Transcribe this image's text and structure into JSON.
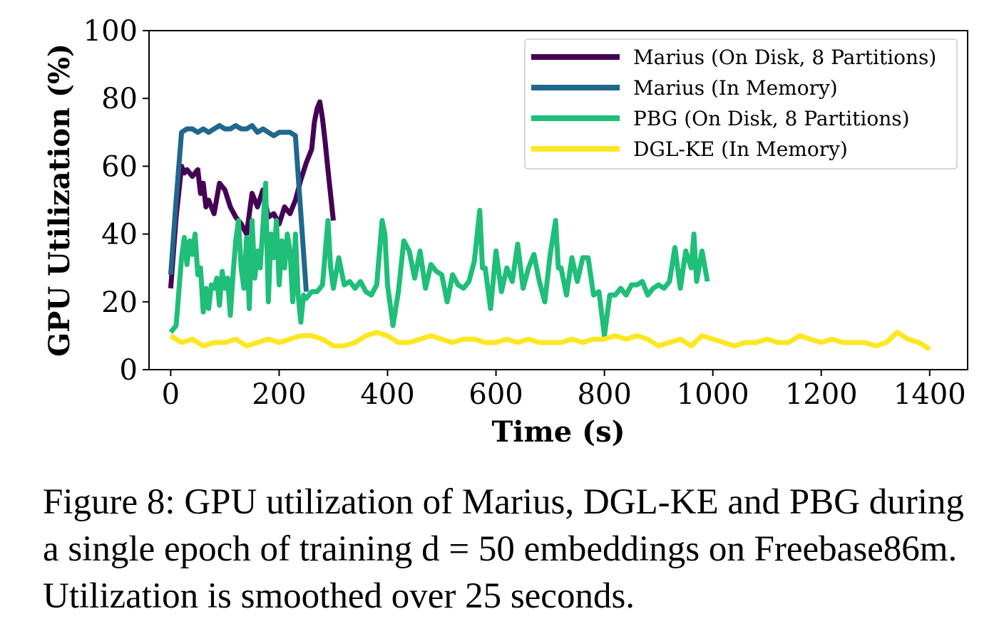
{
  "chart_data": {
    "type": "line",
    "xlabel": "Time (s)",
    "ylabel": "GPU Utilization (%)",
    "xlim": [
      -40,
      1470
    ],
    "ylim": [
      0,
      100
    ],
    "xticks": [
      0,
      200,
      400,
      600,
      800,
      1000,
      1200,
      1400
    ],
    "yticks": [
      0,
      20,
      40,
      60,
      80,
      100
    ],
    "grid": false,
    "legend_position": "top-right",
    "series": [
      {
        "name": "Marius (On Disk, 8 Partitions)",
        "color": "#440154",
        "x": [
          0,
          10,
          20,
          25,
          30,
          40,
          50,
          55,
          60,
          65,
          70,
          80,
          90,
          100,
          110,
          120,
          130,
          140,
          150,
          160,
          170,
          180,
          190,
          200,
          210,
          220,
          230,
          240,
          250,
          260,
          265,
          270,
          275,
          280,
          285,
          290,
          300
        ],
        "y": [
          24,
          45,
          60,
          58,
          59,
          57,
          59,
          52,
          55,
          48,
          50,
          46,
          55,
          53,
          48,
          45,
          43,
          40,
          52,
          48,
          53,
          45,
          46,
          43,
          48,
          46,
          50,
          56,
          61,
          65,
          73,
          77,
          79,
          74,
          67,
          59,
          44
        ]
      },
      {
        "name": "Marius (In Memory)",
        "color": "#21678c",
        "x": [
          0,
          10,
          20,
          30,
          40,
          50,
          60,
          70,
          80,
          90,
          100,
          110,
          120,
          130,
          140,
          150,
          160,
          170,
          180,
          190,
          200,
          210,
          220,
          230,
          250
        ],
        "y": [
          28,
          50,
          70,
          71,
          71,
          70,
          71,
          70,
          71,
          72,
          71,
          71,
          72,
          71,
          71,
          72,
          70,
          71,
          70,
          69,
          70,
          70,
          70,
          69,
          23
        ]
      },
      {
        "name": "PBG (On Disk, 8 Partitions)",
        "color": "#1fbe79",
        "x": [
          0,
          10,
          20,
          25,
          30,
          35,
          40,
          45,
          50,
          55,
          60,
          65,
          70,
          75,
          80,
          85,
          90,
          95,
          100,
          105,
          110,
          115,
          120,
          125,
          130,
          135,
          140,
          145,
          150,
          155,
          160,
          165,
          170,
          175,
          180,
          185,
          190,
          195,
          200,
          205,
          210,
          215,
          220,
          225,
          230,
          235,
          240,
          245,
          250,
          260,
          270,
          280,
          290,
          295,
          300,
          310,
          320,
          330,
          340,
          350,
          360,
          370,
          380,
          390,
          395,
          400,
          410,
          420,
          430,
          440,
          450,
          460,
          470,
          480,
          490,
          500,
          510,
          520,
          530,
          540,
          550,
          560,
          570,
          575,
          580,
          590,
          600,
          610,
          620,
          630,
          640,
          650,
          660,
          670,
          680,
          690,
          700,
          710,
          715,
          720,
          730,
          740,
          750,
          760,
          770,
          780,
          790,
          800,
          810,
          820,
          830,
          840,
          850,
          860,
          870,
          880,
          890,
          900,
          910,
          920,
          930,
          940,
          950,
          960,
          965,
          970,
          980,
          990
        ],
        "y": [
          11,
          13,
          33,
          39,
          31,
          38,
          34,
          40,
          28,
          30,
          17,
          24,
          18,
          25,
          24,
          27,
          19,
          29,
          24,
          27,
          16,
          28,
          38,
          44,
          30,
          24,
          39,
          18,
          44,
          27,
          35,
          30,
          42,
          55,
          20,
          40,
          33,
          44,
          25,
          38,
          30,
          40,
          35,
          20,
          40,
          22,
          14,
          22,
          21,
          23,
          23,
          25,
          44,
          30,
          24,
          33,
          25,
          26,
          24,
          26,
          23,
          22,
          25,
          44,
          40,
          25,
          13,
          23,
          38,
          35,
          27,
          35,
          24,
          31,
          29,
          28,
          20,
          28,
          25,
          24,
          26,
          32,
          47,
          30,
          30,
          18,
          35,
          23,
          30,
          26,
          37,
          24,
          30,
          34,
          26,
          20,
          34,
          44,
          30,
          30,
          22,
          33,
          26,
          33,
          33,
          22,
          23,
          10,
          22,
          22,
          24,
          22,
          25,
          25,
          26,
          22,
          24,
          25,
          24,
          26,
          36,
          24,
          35,
          30,
          40,
          26,
          35,
          26
        ]
      },
      {
        "name": "DGL-KE (In Memory)",
        "color": "#fde725",
        "x": [
          0,
          20,
          40,
          60,
          80,
          100,
          120,
          140,
          160,
          180,
          200,
          220,
          240,
          260,
          280,
          300,
          320,
          340,
          360,
          380,
          400,
          420,
          440,
          460,
          480,
          500,
          520,
          540,
          560,
          580,
          600,
          620,
          640,
          660,
          680,
          700,
          720,
          740,
          760,
          780,
          800,
          820,
          840,
          860,
          880,
          900,
          920,
          940,
          960,
          980,
          1000,
          1020,
          1040,
          1060,
          1080,
          1100,
          1120,
          1140,
          1160,
          1180,
          1200,
          1220,
          1240,
          1260,
          1280,
          1300,
          1320,
          1340,
          1360,
          1380,
          1400
        ],
        "y": [
          10,
          8,
          9,
          7,
          8,
          8,
          9,
          7,
          8,
          9,
          8,
          9,
          10,
          10,
          9,
          7,
          7,
          8,
          10,
          11,
          10,
          8,
          8,
          9,
          10,
          9,
          8,
          9,
          9,
          8,
          8,
          9,
          8,
          9,
          8,
          8,
          8,
          9,
          8,
          9,
          9,
          10,
          9,
          10,
          9,
          7,
          8,
          9,
          7,
          10,
          9,
          8,
          7,
          8,
          8,
          9,
          8,
          8,
          10,
          9,
          8,
          9,
          8,
          8,
          8,
          7,
          8,
          11,
          9,
          8,
          6
        ]
      }
    ]
  },
  "caption": {
    "text": "Figure 8: GPU utilization of Marius, DGL-KE and PBG during a single epoch of training d = 50 embeddings on Freebase86m. Utilization is smoothed over 25 seconds."
  }
}
